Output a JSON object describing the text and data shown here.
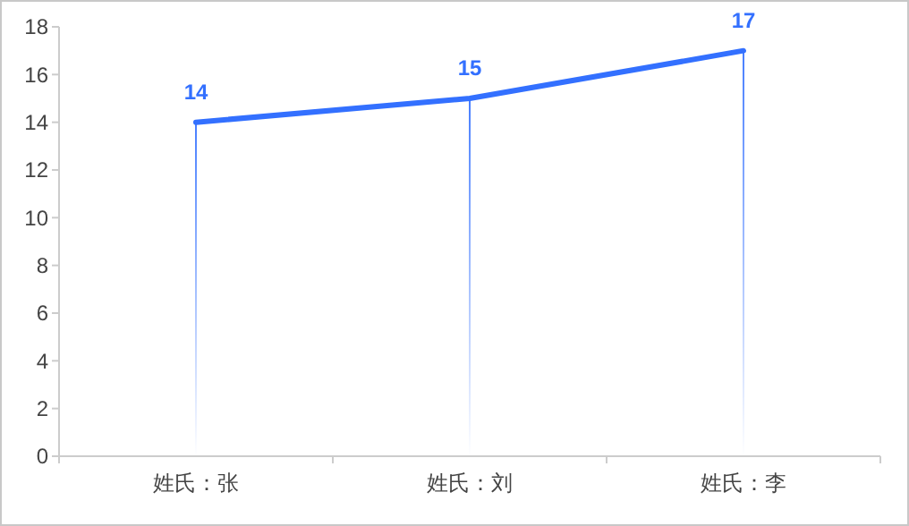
{
  "chart_data": {
    "type": "line",
    "categories": [
      "姓氏：张",
      "姓氏：刘",
      "姓氏：李"
    ],
    "series": [
      {
        "type": "bar",
        "color": "#3370ff",
        "values": [
          14,
          15,
          17
        ]
      },
      {
        "color": "#3370ff",
        "values": [
          14,
          15,
          17
        ],
        "value_labels": [
          "14",
          "15",
          "17"
        ]
      }
    ],
    "ylim": [
      0,
      18
    ],
    "yticks": [
      0,
      2,
      4,
      6,
      8,
      10,
      12,
      14,
      16,
      18
    ],
    "grid": false,
    "marker": "none",
    "line_style": "solid"
  }
}
